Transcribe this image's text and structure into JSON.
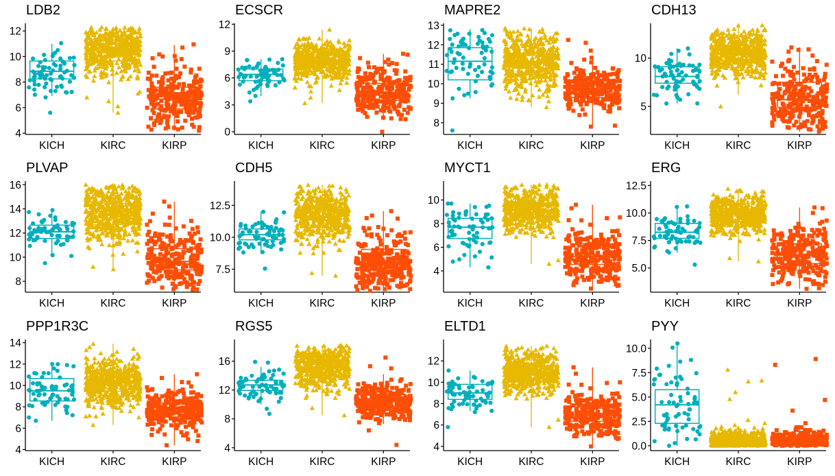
{
  "chart_data": {
    "type": "box+jitter",
    "layout": "3x4 grid of panels",
    "groups": [
      "KICH",
      "KIRC",
      "KIRP"
    ],
    "group_colors": {
      "KICH": "#00AFBB",
      "KIRC": "#E7B800",
      "KIRP": "#FC4E07"
    },
    "group_shapes": {
      "KICH": "circle",
      "KIRC": "triangle",
      "KIRP": "square"
    },
    "legend": "none",
    "grid": false,
    "panels": [
      {
        "title": "LDB2",
        "ylim": [
          3.9,
          12.6
        ],
        "yticks": [
          4,
          6,
          8,
          10,
          12
        ],
        "ytick_labels": [
          "4",
          "6",
          "8",
          "10",
          "12"
        ],
        "boxes": [
          {
            "group": "KICH",
            "min": 6.9,
            "q1": 8.25,
            "median": 8.85,
            "q3": 9.65,
            "max": 11.0,
            "points": [
              5.6,
              6.8,
              11.05,
              10.5,
              7.3,
              7.6
            ]
          },
          {
            "group": "KIRC",
            "min": 5.6,
            "q1": 9.65,
            "median": 10.45,
            "q3": 10.95,
            "max": 12.3,
            "points": [
              5.6,
              6.1,
              6.5,
              6.8,
              12.3
            ]
          },
          {
            "group": "KIRP",
            "min": 4.2,
            "q1": 5.9,
            "median": 6.65,
            "q3": 7.6,
            "max": 10.9,
            "points": [
              4.2,
              10.7,
              10.95,
              4.3
            ]
          }
        ]
      },
      {
        "title": "ECSCR",
        "ylim": [
          -0.3,
          12.1
        ],
        "yticks": [
          0,
          3,
          6,
          9,
          12
        ],
        "ytick_labels": [
          "0",
          "3",
          "6",
          "9",
          "12"
        ],
        "boxes": [
          {
            "group": "KICH",
            "min": 4.0,
            "q1": 5.7,
            "median": 6.4,
            "q3": 7.0,
            "max": 8.1,
            "points": [
              3.4,
              4.0,
              8.1
            ]
          },
          {
            "group": "KIRC",
            "min": 3.2,
            "q1": 7.2,
            "median": 8.0,
            "q3": 8.6,
            "max": 11.4,
            "points": [
              3.2,
              3.8,
              11.4,
              10.4
            ]
          },
          {
            "group": "KIRP",
            "min": 1.3,
            "q1": 3.5,
            "median": 4.4,
            "q3": 5.4,
            "max": 8.7,
            "points": [
              0.0,
              1.4,
              8.7,
              8.6,
              1.5
            ]
          }
        ]
      },
      {
        "title": "MAPRE2",
        "ylim": [
          7.4,
          13.1
        ],
        "yticks": [
          8,
          9,
          10,
          11,
          12,
          13
        ],
        "ytick_labels": [
          "8",
          "9",
          "10",
          "11",
          "12",
          "13"
        ],
        "boxes": [
          {
            "group": "KICH",
            "min": 9.25,
            "q1": 10.2,
            "median": 11.15,
            "q3": 11.85,
            "max": 12.8,
            "points": [
              7.6,
              9.25,
              12.75
            ]
          },
          {
            "group": "KIRC",
            "min": 8.8,
            "q1": 10.5,
            "median": 11.05,
            "q3": 11.55,
            "max": 12.85,
            "points": [
              8.8,
              9.1,
              12.85
            ]
          },
          {
            "group": "KIRP",
            "min": 7.8,
            "q1": 9.3,
            "median": 9.75,
            "q3": 10.15,
            "max": 11.35,
            "points": [
              7.8,
              7.85,
              12.25,
              12.1,
              11.7
            ]
          }
        ]
      },
      {
        "title": "CDH13",
        "ylim": [
          2.1,
          13.6
        ],
        "yticks": [
          5,
          10
        ],
        "ytick_labels": [
          "5",
          "10"
        ],
        "boxes": [
          {
            "group": "KICH",
            "min": 5.3,
            "q1": 7.4,
            "median": 8.1,
            "q3": 9.1,
            "max": 11.0,
            "points": [
              5.3,
              11.0,
              6.2
            ]
          },
          {
            "group": "KIRC",
            "min": 6.2,
            "q1": 9.7,
            "median": 10.5,
            "q3": 11.3,
            "max": 13.4,
            "points": [
              5.0,
              13.4,
              13.0
            ]
          },
          {
            "group": "KIRP",
            "min": 2.4,
            "q1": 4.9,
            "median": 5.7,
            "q3": 7.5,
            "max": 11.1,
            "points": [
              2.4,
              11.1,
              10.9
            ]
          }
        ]
      },
      {
        "title": "PLVAP",
        "ylim": [
          7.1,
          16.3
        ],
        "yticks": [
          8,
          10,
          12,
          14,
          16
        ],
        "ytick_labels": [
          "8",
          "10",
          "12",
          "14",
          "16"
        ],
        "boxes": [
          {
            "group": "KICH",
            "min": 10.1,
            "q1": 11.55,
            "median": 12.1,
            "q3": 12.65,
            "max": 13.95,
            "points": [
              9.5,
              10.1,
              13.9
            ]
          },
          {
            "group": "KIRC",
            "min": 9.0,
            "q1": 12.7,
            "median": 13.8,
            "q3": 14.45,
            "max": 16.0,
            "points": [
              9.0,
              9.2,
              16.0
            ]
          },
          {
            "group": "KIRP",
            "min": 7.3,
            "q1": 8.95,
            "median": 9.65,
            "q3": 10.7,
            "max": 14.6,
            "points": [
              7.3,
              14.6,
              14.2,
              13.6
            ]
          }
        ]
      },
      {
        "title": "CDH5",
        "ylim": [
          5.7,
          14.4
        ],
        "yticks": [
          7.5,
          10.0,
          12.5
        ],
        "ytick_labels": [
          "7.5",
          "10.0",
          "12.5"
        ],
        "boxes": [
          {
            "group": "KICH",
            "min": 8.7,
            "q1": 9.8,
            "median": 10.2,
            "q3": 10.65,
            "max": 12.0,
            "points": [
              7.55,
              12.0
            ]
          },
          {
            "group": "KIRC",
            "min": 7.0,
            "q1": 10.8,
            "median": 11.65,
            "q3": 12.2,
            "max": 14.1,
            "points": [
              7.0,
              7.2,
              14.1
            ]
          },
          {
            "group": "KIRP",
            "min": 5.8,
            "q1": 7.45,
            "median": 8.0,
            "q3": 9.05,
            "max": 12.05,
            "points": [
              5.8,
              12.05,
              11.7,
              11.5
            ]
          }
        ]
      },
      {
        "title": "MYCT1",
        "ylim": [
          2.2,
          11.6
        ],
        "yticks": [
          4,
          6,
          8,
          10
        ],
        "ytick_labels": [
          "4",
          "6",
          "8",
          "10"
        ],
        "boxes": [
          {
            "group": "KICH",
            "min": 4.3,
            "q1": 6.75,
            "median": 7.7,
            "q3": 8.45,
            "max": 9.7,
            "points": [
              4.3,
              9.7,
              9.4
            ]
          },
          {
            "group": "KIRC",
            "min": 4.6,
            "q1": 8.5,
            "median": 9.15,
            "q3": 9.75,
            "max": 11.3,
            "points": [
              4.6,
              4.9,
              11.3
            ]
          },
          {
            "group": "KIRP",
            "min": 2.5,
            "q1": 4.55,
            "median": 5.2,
            "q3": 6.3,
            "max": 9.6,
            "points": [
              2.5,
              2.8,
              9.6,
              9.3
            ]
          }
        ]
      },
      {
        "title": "ERG",
        "ylim": [
          2.8,
          12.9
        ],
        "yticks": [
          5.0,
          7.5,
          10.0,
          12.5
        ],
        "ytick_labels": [
          "5.0",
          "7.5",
          "10.0",
          "12.5"
        ],
        "boxes": [
          {
            "group": "KICH",
            "min": 6.4,
            "q1": 7.7,
            "median": 8.25,
            "q3": 9.05,
            "max": 10.6,
            "points": [
              5.3,
              10.6,
              6.4
            ]
          },
          {
            "group": "KIRC",
            "min": 5.6,
            "q1": 9.2,
            "median": 9.85,
            "q3": 10.35,
            "max": 12.2,
            "points": [
              5.6,
              5.9,
              12.2
            ]
          },
          {
            "group": "KIRP",
            "min": 3.1,
            "q1": 5.4,
            "median": 6.2,
            "q3": 7.2,
            "max": 10.5,
            "points": [
              3.1,
              3.8,
              10.5,
              10.0
            ]
          }
        ]
      },
      {
        "title": "PPP1R3C",
        "ylim": [
          3.9,
          14.3
        ],
        "yticks": [
          4,
          6,
          8,
          10,
          12,
          14
        ],
        "ytick_labels": [
          "4",
          "6",
          "8",
          "10",
          "12",
          "14"
        ],
        "boxes": [
          {
            "group": "KICH",
            "min": 6.7,
            "q1": 8.55,
            "median": 9.5,
            "q3": 10.65,
            "max": 12.0,
            "points": [
              6.7,
              7.0,
              12.0
            ]
          },
          {
            "group": "KIRC",
            "min": 6.3,
            "q1": 9.45,
            "median": 10.3,
            "q3": 11.0,
            "max": 13.9,
            "points": [
              6.3,
              7.1,
              13.9
            ]
          },
          {
            "group": "KIRP",
            "min": 4.4,
            "q1": 7.05,
            "median": 7.65,
            "q3": 8.35,
            "max": 11.05,
            "points": [
              4.4,
              4.8,
              11.05,
              10.7
            ]
          }
        ]
      },
      {
        "title": "RGS5",
        "ylim": [
          3.6,
          19.0
        ],
        "yticks": [
          4,
          8,
          12,
          16
        ],
        "ytick_labels": [
          "4",
          "8",
          "12",
          "16"
        ],
        "boxes": [
          {
            "group": "KICH",
            "min": 10.0,
            "q1": 11.95,
            "median": 12.7,
            "q3": 13.35,
            "max": 15.2,
            "points": [
              8.7,
              9.4,
              15.9,
              15.8
            ]
          },
          {
            "group": "KIRC",
            "min": 8.5,
            "q1": 13.9,
            "median": 15.2,
            "q3": 16.0,
            "max": 18.2,
            "points": [
              8.5,
              9.5,
              18.2
            ]
          },
          {
            "group": "KIRP",
            "min": 7.3,
            "q1": 9.6,
            "median": 10.4,
            "q3": 11.4,
            "max": 14.2,
            "points": [
              4.4,
              6.4,
              16.5,
              15.3,
              15.0
            ]
          }
        ]
      },
      {
        "title": "ELTD1",
        "ylim": [
          3.6,
          14.0
        ],
        "yticks": [
          4,
          6,
          8,
          10,
          12
        ],
        "ytick_labels": [
          "4",
          "6",
          "8",
          "10",
          "12"
        ],
        "boxes": [
          {
            "group": "KICH",
            "min": 7.3,
            "q1": 8.4,
            "median": 9.0,
            "q3": 9.8,
            "max": 11.1,
            "points": [
              5.8,
              7.2,
              11.1
            ]
          },
          {
            "group": "KIRC",
            "min": 5.8,
            "q1": 10.2,
            "median": 10.95,
            "q3": 11.55,
            "max": 13.4,
            "points": [
              5.8,
              6.5,
              13.4
            ]
          },
          {
            "group": "KIRP",
            "min": 4.0,
            "q1": 6.35,
            "median": 6.95,
            "q3": 7.95,
            "max": 11.4,
            "points": [
              4.0,
              11.4,
              10.8
            ]
          }
        ]
      },
      {
        "title": "PYY",
        "ylim": [
          -0.5,
          10.9
        ],
        "yticks": [
          0.0,
          2.5,
          5.0,
          7.5,
          10.0
        ],
        "ytick_labels": [
          "0.0",
          "2.5",
          "5.0",
          "7.5",
          "10.0"
        ],
        "boxes": [
          {
            "group": "KICH",
            "min": 0.0,
            "q1": 2.3,
            "median": 4.2,
            "q3": 5.75,
            "max": 10.5,
            "points": [
              0.0,
              10.5,
              8.8,
              8.2
            ]
          },
          {
            "group": "KIRC",
            "min": 0.0,
            "q1": 0.0,
            "median": 0.05,
            "q3": 0.7,
            "max": 1.75,
            "points": [
              7.8,
              6.7,
              6.6,
              5.5,
              4.8
            ]
          },
          {
            "group": "KIRP",
            "min": 0.0,
            "q1": 0.0,
            "median": 0.05,
            "q3": 0.75,
            "max": 1.9,
            "points": [
              8.9,
              8.3,
              4.7,
              3.6
            ]
          }
        ]
      }
    ]
  }
}
